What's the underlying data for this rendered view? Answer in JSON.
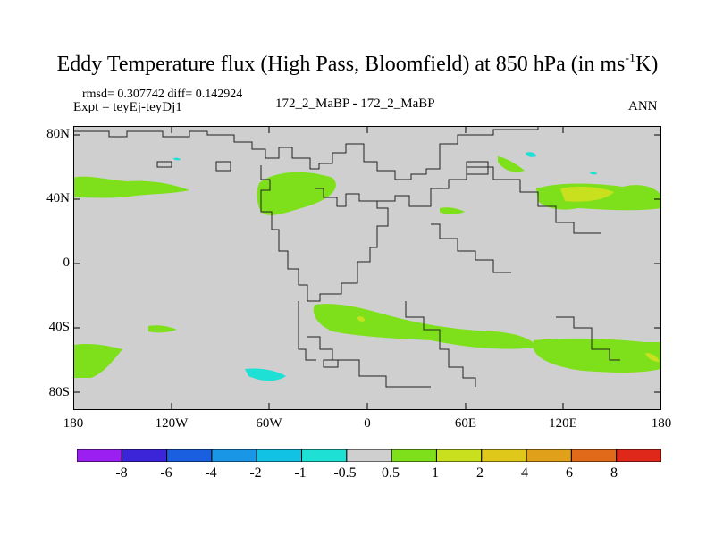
{
  "title": {
    "prefix": "Eddy Temperature flux (High Pass, Bloomfield) at 850 hPa (in ms",
    "sup": "-1",
    "suffix": "K)"
  },
  "stats": "rmsd= 0.307742 diff= 0.142924",
  "expt": "Expt = teyEj-teyDj1",
  "case_label": "172_2_MaBP - 172_2_MaBP",
  "season": "ANN",
  "lat_ticks": [
    "80N",
    "40N",
    "0",
    "40S",
    "80S"
  ],
  "lon_ticks": [
    "180",
    "120W",
    "60W",
    "0",
    "60E",
    "120E",
    "180"
  ],
  "colorbar": {
    "labels": [
      "-8",
      "-6",
      "-4",
      "-2",
      "-1",
      "-0.5",
      "0.5",
      "1",
      "2",
      "4",
      "6",
      "8"
    ],
    "colors": [
      "#9a1ff0",
      "#3c24d8",
      "#1a5fe0",
      "#1a96e6",
      "#12c2e4",
      "#1ee0d4",
      "#cfcfcf",
      "#7ee01a",
      "#c8e01e",
      "#e0c81a",
      "#e0a01a",
      "#e06a1a",
      "#e0281a"
    ]
  },
  "colors": {
    "ocean_background": "#cfcfcf",
    "positive_05_1": "#7ee01a",
    "positive_1_2": "#c8e01e",
    "positive_2_4": "#e0c81a",
    "negative_1_05": "#1ee0d4"
  }
}
